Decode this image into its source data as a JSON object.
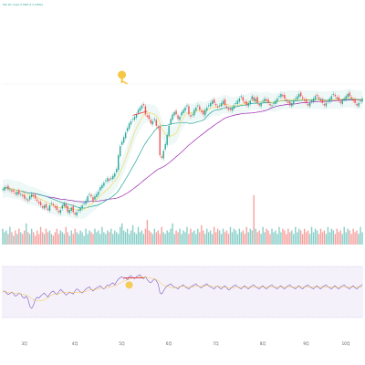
{
  "legend": "MA 20 close 0 SMA 9 2 (SMA)",
  "chart_data": [
    {
      "panel": "price",
      "type": "candlestick",
      "title": "",
      "xlabel": "",
      "ylabel": "",
      "ylim": [
        0,
        100
      ],
      "grid": false,
      "x": [
        0,
        1,
        2,
        3,
        4,
        5,
        6,
        7,
        8,
        9,
        10,
        11,
        12,
        13,
        14,
        15,
        16,
        17,
        18,
        19,
        20,
        21,
        22,
        23,
        24,
        25,
        26,
        27,
        28,
        29,
        30,
        31,
        32,
        33,
        34,
        35,
        36,
        37,
        38,
        39,
        40,
        41,
        42,
        43,
        44,
        45,
        46,
        47,
        48,
        49,
        50,
        51,
        52,
        53,
        54,
        55,
        56,
        57,
        58,
        59,
        60,
        61,
        62,
        63,
        64,
        65,
        66,
        67,
        68,
        69,
        70,
        71,
        72,
        73,
        74,
        75,
        76,
        77,
        78,
        79,
        80,
        81,
        82,
        83,
        84,
        85,
        86,
        87,
        88,
        89,
        90,
        91,
        92,
        93,
        94,
        95,
        96,
        97,
        98,
        99,
        100,
        101,
        102,
        103,
        104,
        105,
        106,
        107,
        108,
        109,
        110,
        111,
        112,
        113,
        114,
        115,
        116,
        117,
        118,
        119,
        120,
        121,
        122,
        123,
        124,
        125,
        126,
        127,
        128,
        129,
        130,
        131,
        132,
        133,
        134,
        135,
        136,
        137,
        138,
        139,
        140,
        141,
        142,
        143,
        144,
        145,
        146,
        147,
        148,
        149,
        150,
        151,
        152,
        153,
        154,
        155,
        156,
        157,
        158,
        159,
        160,
        161,
        162,
        163,
        164,
        165,
        166,
        167,
        168,
        169,
        170,
        171,
        172,
        173,
        174,
        175,
        176,
        177,
        178,
        179,
        180,
        181,
        182,
        183,
        184,
        185,
        186,
        187,
        188,
        189,
        190,
        191,
        192,
        193,
        194,
        195,
        196,
        197,
        198,
        199
      ],
      "close": [
        43,
        44,
        44,
        43,
        43,
        42,
        42,
        41,
        42,
        41,
        41,
        40,
        39,
        39,
        38,
        40,
        41,
        40,
        39,
        38,
        37,
        36,
        35,
        36,
        35,
        34,
        36,
        37,
        36,
        35,
        34,
        33,
        34,
        36,
        37,
        35,
        33,
        34,
        35,
        33,
        32,
        33,
        34,
        35,
        36,
        37,
        38,
        40,
        41,
        40,
        38,
        40,
        41,
        42,
        44,
        45,
        46,
        47,
        48,
        47,
        48,
        49,
        50,
        52,
        58,
        62,
        64,
        66,
        68,
        70,
        72,
        73,
        74,
        75,
        76,
        78,
        79,
        80,
        80,
        76,
        75,
        74,
        72,
        73,
        74,
        71,
        70,
        58,
        57,
        60,
        63,
        67,
        71,
        74,
        76,
        77,
        76,
        74,
        75,
        77,
        78,
        79,
        80,
        76,
        75,
        76,
        78,
        79,
        80,
        78,
        77,
        76,
        78,
        79,
        80,
        81,
        82,
        81,
        80,
        79,
        80,
        81,
        82,
        80,
        79,
        78,
        78,
        79,
        80,
        81,
        82,
        83,
        84,
        82,
        81,
        80,
        81,
        82,
        84,
        82,
        83,
        81,
        80,
        81,
        82,
        83,
        82,
        81,
        80,
        80,
        81,
        82,
        83,
        84,
        85,
        84,
        83,
        82,
        81,
        80,
        81,
        82,
        83,
        84,
        85,
        84,
        83,
        82,
        81,
        80,
        81,
        82,
        83,
        84,
        84,
        83,
        82,
        81,
        80,
        81,
        82,
        83,
        84,
        85,
        84,
        83,
        82,
        81,
        82,
        83,
        84,
        85,
        84,
        83,
        82,
        81,
        80,
        81,
        82,
        83
      ],
      "series": [
        {
          "name": "",
          "kind": "ma-short",
          "color": "#f5d547"
        },
        {
          "name": "",
          "kind": "ma-long",
          "color": "#26a69a"
        },
        {
          "name": "",
          "kind": "ma-slow",
          "color": "#9c27b0"
        }
      ],
      "colors": {
        "up": "#26a69a",
        "down": "#ef5350",
        "band": "#26a69a"
      },
      "annotations": [
        {
          "type": "trendline",
          "from_x": 72,
          "to_x": 80,
          "color": "#e53935"
        },
        {
          "type": "icon",
          "icon": "hand-pointing-icon",
          "at_x": 70,
          "color": "#f6c744"
        }
      ]
    },
    {
      "panel": "volume",
      "type": "bar",
      "title": "",
      "values": [
        9,
        7,
        8,
        6,
        10,
        7,
        5,
        8,
        6,
        9,
        7,
        6,
        8,
        12,
        7,
        6,
        9,
        7,
        5,
        8,
        6,
        10,
        7,
        6,
        9,
        7,
        8,
        6,
        5,
        7,
        9,
        6,
        8,
        7,
        6,
        10,
        7,
        5,
        8,
        6,
        9,
        7,
        6,
        8,
        7,
        5,
        9,
        6,
        8,
        7,
        6,
        9,
        7,
        8,
        6,
        10,
        7,
        6,
        8,
        7,
        9,
        6,
        8,
        7,
        6,
        10,
        12,
        8,
        7,
        9,
        6,
        8,
        11,
        7,
        6,
        10,
        7,
        8,
        6,
        9,
        14,
        8,
        7,
        6,
        9,
        7,
        8,
        6,
        10,
        7,
        6,
        8,
        7,
        9,
        12,
        6,
        8,
        7,
        9,
        6,
        8,
        7,
        10,
        6,
        9,
        7,
        8,
        6,
        9,
        7,
        11,
        8,
        6,
        9,
        7,
        8,
        6,
        10,
        7,
        9,
        8,
        6,
        9,
        7,
        8,
        6,
        10,
        7,
        9,
        8,
        6,
        9,
        7,
        8,
        6,
        10,
        7,
        9,
        8,
        28,
        9,
        7,
        8,
        6,
        10,
        7,
        9,
        8,
        6,
        9,
        7,
        8,
        6,
        10,
        7,
        9,
        8,
        6,
        9,
        7,
        8,
        6,
        10,
        7,
        9,
        8,
        6,
        9,
        7,
        8,
        6,
        10,
        7,
        9,
        8,
        6,
        9,
        7,
        8,
        6,
        10,
        7,
        9,
        8,
        6,
        9,
        7,
        8,
        6,
        10,
        7,
        9,
        8,
        6,
        9,
        7,
        8,
        6,
        10,
        7
      ],
      "ylim": [
        0,
        30
      ]
    },
    {
      "panel": "oscillator",
      "type": "line",
      "title": "",
      "ylim": [
        0,
        100
      ],
      "values": [
        50,
        52,
        48,
        45,
        47,
        50,
        46,
        42,
        44,
        48,
        46,
        40,
        38,
        42,
        36,
        22,
        18,
        24,
        35,
        40,
        38,
        42,
        45,
        48,
        44,
        40,
        46,
        50,
        52,
        48,
        45,
        50,
        55,
        52,
        48,
        44,
        46,
        50,
        48,
        46,
        52,
        56,
        54,
        50,
        48,
        52,
        56,
        58,
        60,
        55,
        52,
        56,
        58,
        60,
        62,
        58,
        56,
        60,
        64,
        62,
        66,
        68,
        64,
        70,
        75,
        78,
        80,
        76,
        78,
        74,
        80,
        82,
        78,
        76,
        80,
        82,
        84,
        78,
        76,
        80,
        74,
        70,
        68,
        72,
        76,
        72,
        66,
        48,
        46,
        52,
        58,
        62,
        64,
        66,
        62,
        60,
        58,
        56,
        60,
        62,
        64,
        60,
        58,
        56,
        60,
        62,
        64,
        66,
        62,
        60,
        58,
        62,
        64,
        66,
        62,
        60,
        58,
        56,
        60,
        62,
        58,
        56,
        60,
        62,
        58,
        54,
        56,
        60,
        62,
        64,
        60,
        58,
        56,
        60,
        62,
        58,
        56,
        60,
        62,
        64,
        60,
        58,
        56,
        60,
        62,
        58,
        56,
        60,
        62,
        64,
        60,
        58,
        56,
        60,
        62,
        58,
        56,
        60,
        62,
        64,
        60,
        58,
        56,
        60,
        62,
        58,
        56,
        60,
        62,
        64,
        60,
        58,
        56,
        60,
        62,
        58,
        56,
        60,
        62,
        64,
        60,
        58,
        56,
        60,
        62,
        58,
        56,
        60,
        62,
        64,
        60,
        58,
        56,
        60,
        62,
        58,
        56,
        60,
        62,
        64
      ],
      "series": [
        {
          "name": "",
          "kind": "oscillator",
          "color": "#7e57c2"
        },
        {
          "name": "",
          "kind": "signal",
          "color": "#f6c744"
        }
      ],
      "annotations": [
        {
          "type": "trendline",
          "from_x": 67,
          "to_x": 78,
          "color": "#e53935"
        },
        {
          "type": "icon",
          "icon": "circle-marker-icon",
          "at_x": 72,
          "color": "#f6c744"
        }
      ]
    }
  ],
  "x_axis": {
    "tick_labels": [
      "3月",
      "4月",
      "5月",
      "6月",
      "7月",
      "8月",
      "9月",
      "10月"
    ],
    "tick_positions": [
      12,
      40,
      66,
      92,
      118,
      144,
      168,
      190
    ]
  }
}
